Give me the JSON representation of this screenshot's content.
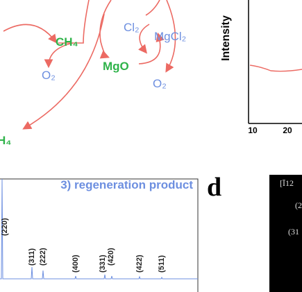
{
  "scheme": {
    "labels": [
      "CH₄",
      "O₂",
      "MgO",
      "Cl₂",
      "MgCl₂",
      "O₂",
      "H₄"
    ]
  },
  "xrd_top": {
    "y_label": "Intensity",
    "x_tick_labels": [
      "10",
      "20"
    ]
  },
  "xrd_bottom": {
    "title": "3) regeneration product",
    "peaks": [
      "(220)",
      "(311)",
      "(222)",
      "(400)",
      "(331)",
      "(420)",
      "(422)",
      "(511)"
    ]
  },
  "panel_d": {
    "letter": "d",
    "annotations": [
      "[Ī12",
      "(2",
      "(31"
    ]
  }
}
